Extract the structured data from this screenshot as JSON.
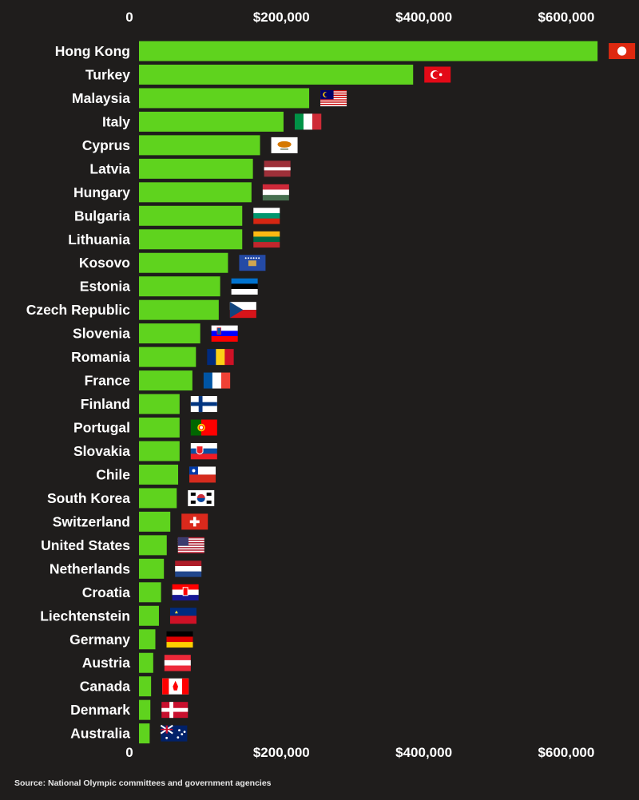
{
  "chart_data": {
    "type": "bar",
    "orientation": "horizontal",
    "title": "",
    "xlabel": "",
    "ylabel": "",
    "xlim": [
      0,
      700000
    ],
    "x_ticks": [
      0,
      200000,
      400000,
      600000
    ],
    "x_tick_labels": [
      "0",
      "$200,000",
      "$400,000",
      "$600,000"
    ],
    "bar_color": "#5fd31e",
    "categories": [
      "Hong Kong",
      "Turkey",
      "Malaysia",
      "Italy",
      "Cyprus",
      "Latvia",
      "Hungary",
      "Bulgaria",
      "Lithuania",
      "Kosovo",
      "Estonia",
      "Czech Republic",
      "Slovenia",
      "Romania",
      "France",
      "Finland",
      "Portugal",
      "Slovakia",
      "Chile",
      "South Korea",
      "Switzerland",
      "United States",
      "Netherlands",
      "Croatia",
      "Liechtenstein",
      "Germany",
      "Austria",
      "Canada",
      "Denmark",
      "Australia"
    ],
    "values": [
      644000,
      385000,
      239000,
      203000,
      170000,
      160000,
      158000,
      145000,
      145000,
      125000,
      114000,
      112000,
      86000,
      80000,
      75000,
      57000,
      57000,
      57000,
      55000,
      53000,
      44000,
      39000,
      35000,
      31000,
      28000,
      23000,
      20000,
      17000,
      16000,
      15000
    ],
    "flags": [
      "hong-kong-flag-icon",
      "turkey-flag-icon",
      "malaysia-flag-icon",
      "italy-flag-icon",
      "cyprus-flag-icon",
      "latvia-flag-icon",
      "hungary-flag-icon",
      "bulgaria-flag-icon",
      "lithuania-flag-icon",
      "kosovo-flag-icon",
      "estonia-flag-icon",
      "czech-republic-flag-icon",
      "slovenia-flag-icon",
      "romania-flag-icon",
      "france-flag-icon",
      "finland-flag-icon",
      "portugal-flag-icon",
      "slovakia-flag-icon",
      "chile-flag-icon",
      "south-korea-flag-icon",
      "switzerland-flag-icon",
      "united-states-flag-icon",
      "netherlands-flag-icon",
      "croatia-flag-icon",
      "liechtenstein-flag-icon",
      "germany-flag-icon",
      "austria-flag-icon",
      "canada-flag-icon",
      "denmark-flag-icon",
      "australia-flag-icon"
    ]
  },
  "source": "Source: National Olympic committees and government agencies"
}
